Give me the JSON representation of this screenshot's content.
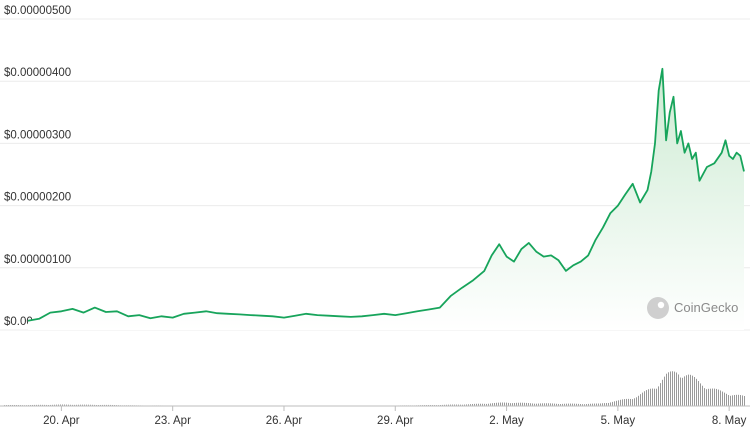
{
  "brand": {
    "name": "CoinGecko",
    "icon": "coingecko-logo-icon"
  },
  "colors": {
    "line": "#17a45b",
    "area_top": "#cdebd3",
    "area_bottom": "#ffffff",
    "grid": "#ececec",
    "volume": "#9a9a9a",
    "baseline": "#bdbdbd"
  },
  "chart_data": {
    "type": "area",
    "y_ticks": [
      "$0.00",
      "$0.00000100",
      "$0.00000200",
      "$0.00000300",
      "$0.00000400",
      "$0.00000500"
    ],
    "y_tick_values": [
      0,
      1e-06,
      2e-06,
      3e-06,
      4e-06,
      5e-06
    ],
    "ylim": [
      0,
      5e-06
    ],
    "x_ticks": [
      "20. Apr",
      "23. Apr",
      "26. Apr",
      "29. Apr",
      "2. May",
      "5. May",
      "8. May"
    ],
    "x_tick_days": [
      20,
      23,
      26,
      29,
      32,
      35,
      38
    ],
    "xlim_days": [
      19.1,
      38.4
    ],
    "grid": true,
    "series": [
      {
        "values_x_days": [
          19.1,
          19.4,
          19.7,
          20.0,
          20.3,
          20.6,
          20.9,
          21.2,
          21.5,
          21.8,
          22.1,
          22.4,
          22.7,
          23.0,
          23.3,
          23.6,
          23.9,
          24.2,
          24.5,
          24.8,
          25.1,
          25.4,
          25.7,
          26.0,
          26.3,
          26.6,
          26.9,
          27.2,
          27.5,
          27.8,
          28.1,
          28.4,
          28.7,
          29.0,
          29.3,
          29.6,
          29.9,
          30.2,
          30.5,
          30.8,
          31.1,
          31.4,
          31.6,
          31.8,
          31.9,
          32.0,
          32.2,
          32.4,
          32.6,
          32.8,
          33.0,
          33.2,
          33.4,
          33.6,
          33.8,
          34.0,
          34.2,
          34.4,
          34.6,
          34.8,
          35.0,
          35.2,
          35.4,
          35.6,
          35.8,
          35.9,
          36.0,
          36.1,
          36.2,
          36.3,
          36.4,
          36.5,
          36.6,
          36.7,
          36.8,
          36.9,
          37.0,
          37.1,
          37.2,
          37.4,
          37.6,
          37.8,
          37.9,
          38.0,
          38.1,
          38.2,
          38.3,
          38.4
        ],
        "values_y": [
          1.5e-07,
          1.8e-07,
          2.8e-07,
          3e-07,
          3.4e-07,
          2.8e-07,
          3.6e-07,
          2.9e-07,
          3e-07,
          2.2e-07,
          2.4e-07,
          1.9e-07,
          2.2e-07,
          2e-07,
          2.6e-07,
          2.8e-07,
          3e-07,
          2.7e-07,
          2.6e-07,
          2.5e-07,
          2.4e-07,
          2.3e-07,
          2.2e-07,
          2e-07,
          2.3e-07,
          2.6e-07,
          2.4e-07,
          2.3e-07,
          2.2e-07,
          2.1e-07,
          2.2e-07,
          2.4e-07,
          2.6e-07,
          2.4e-07,
          2.7e-07,
          3e-07,
          3.3e-07,
          3.6e-07,
          5.5e-07,
          6.8e-07,
          8e-07,
          9.5e-07,
          1.2e-06,
          1.38e-06,
          1.28e-06,
          1.18e-06,
          1.1e-06,
          1.3e-06,
          1.4e-06,
          1.26e-06,
          1.18e-06,
          1.2e-06,
          1.12e-06,
          9.5e-07,
          1.04e-06,
          1.1e-06,
          1.2e-06,
          1.45e-06,
          1.65e-06,
          1.88e-06,
          2e-06,
          2.18e-06,
          2.35e-06,
          2.05e-06,
          2.25e-06,
          2.55e-06,
          3e-06,
          3.85e-06,
          4.2e-06,
          3.05e-06,
          3.5e-06,
          3.75e-06,
          3e-06,
          3.2e-06,
          2.85e-06,
          3e-06,
          2.75e-06,
          2.85e-06,
          2.4e-06,
          2.62e-06,
          2.68e-06,
          2.85e-06,
          3.05e-06,
          2.8e-06,
          2.75e-06,
          2.85e-06,
          2.8e-06,
          2.55e-06
        ]
      }
    ],
    "volume": {
      "values_x_days": [
        19.1,
        20.0,
        21.0,
        22.0,
        23.0,
        24.0,
        25.0,
        26.0,
        27.0,
        28.0,
        29.0,
        30.0,
        31.0,
        32.0,
        32.5,
        33.0,
        34.0,
        34.5,
        35.0,
        35.5,
        36.0,
        36.3,
        36.6,
        36.9,
        37.2,
        37.5,
        37.8,
        38.1,
        38.4
      ],
      "values": [
        0.8,
        1.2,
        1.0,
        0.5,
        0.4,
        0.3,
        0.3,
        0.3,
        0.3,
        0.3,
        0.4,
        0.8,
        1.5,
        3.0,
        2.5,
        2.2,
        1.8,
        2.0,
        4.5,
        8.0,
        17.0,
        26.0,
        30.0,
        26.0,
        20.0,
        15.0,
        12.0,
        10.0,
        8.0
      ],
      "ylim": [
        0,
        34
      ]
    }
  }
}
